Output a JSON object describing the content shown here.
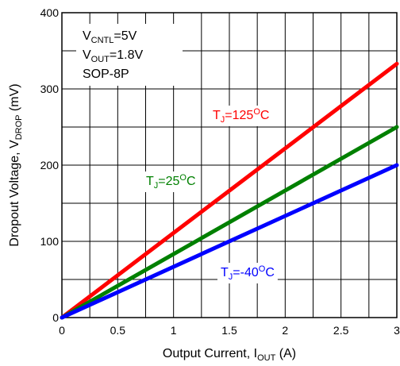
{
  "chart_data": {
    "type": "line",
    "xlabel": {
      "main": "Output Current, I",
      "sub": "OUT",
      "unit": " (A)"
    },
    "ylabel": {
      "main": "Dropout Voltage, V",
      "sub": "DROP",
      "unit": " (mV)"
    },
    "xlim": [
      0,
      3
    ],
    "ylim": [
      0,
      400
    ],
    "x_ticks": [
      "0",
      "0.5",
      "1",
      "1.5",
      "2",
      "2.5",
      "3"
    ],
    "y_ticks": [
      "0",
      "100",
      "200",
      "300",
      "400"
    ],
    "grid": true,
    "conditions": [
      {
        "main": "V",
        "sub": "CNTL",
        "rest": "=5V"
      },
      {
        "main": "V",
        "sub": "OUT",
        "rest": "=1.8V"
      },
      {
        "main": "SOP-8P",
        "sub": "",
        "rest": ""
      }
    ],
    "series": [
      {
        "label": {
          "main": "T",
          "sub": "J",
          "mid": "=125",
          "sup": "O",
          "end": "C"
        },
        "color": "#ff0000",
        "x": [
          0,
          3
        ],
        "y": [
          0,
          333
        ]
      },
      {
        "label": {
          "main": "T",
          "sub": "J",
          "mid": "=25",
          "sup": "O",
          "end": "C"
        },
        "color": "#008000",
        "x": [
          0,
          3
        ],
        "y": [
          0,
          250
        ]
      },
      {
        "label": {
          "main": "T",
          "sub": "J",
          "mid": "=-40",
          "sup": "O",
          "end": "C"
        },
        "color": "#0000ff",
        "x": [
          0,
          3
        ],
        "y": [
          0,
          200
        ]
      }
    ]
  }
}
